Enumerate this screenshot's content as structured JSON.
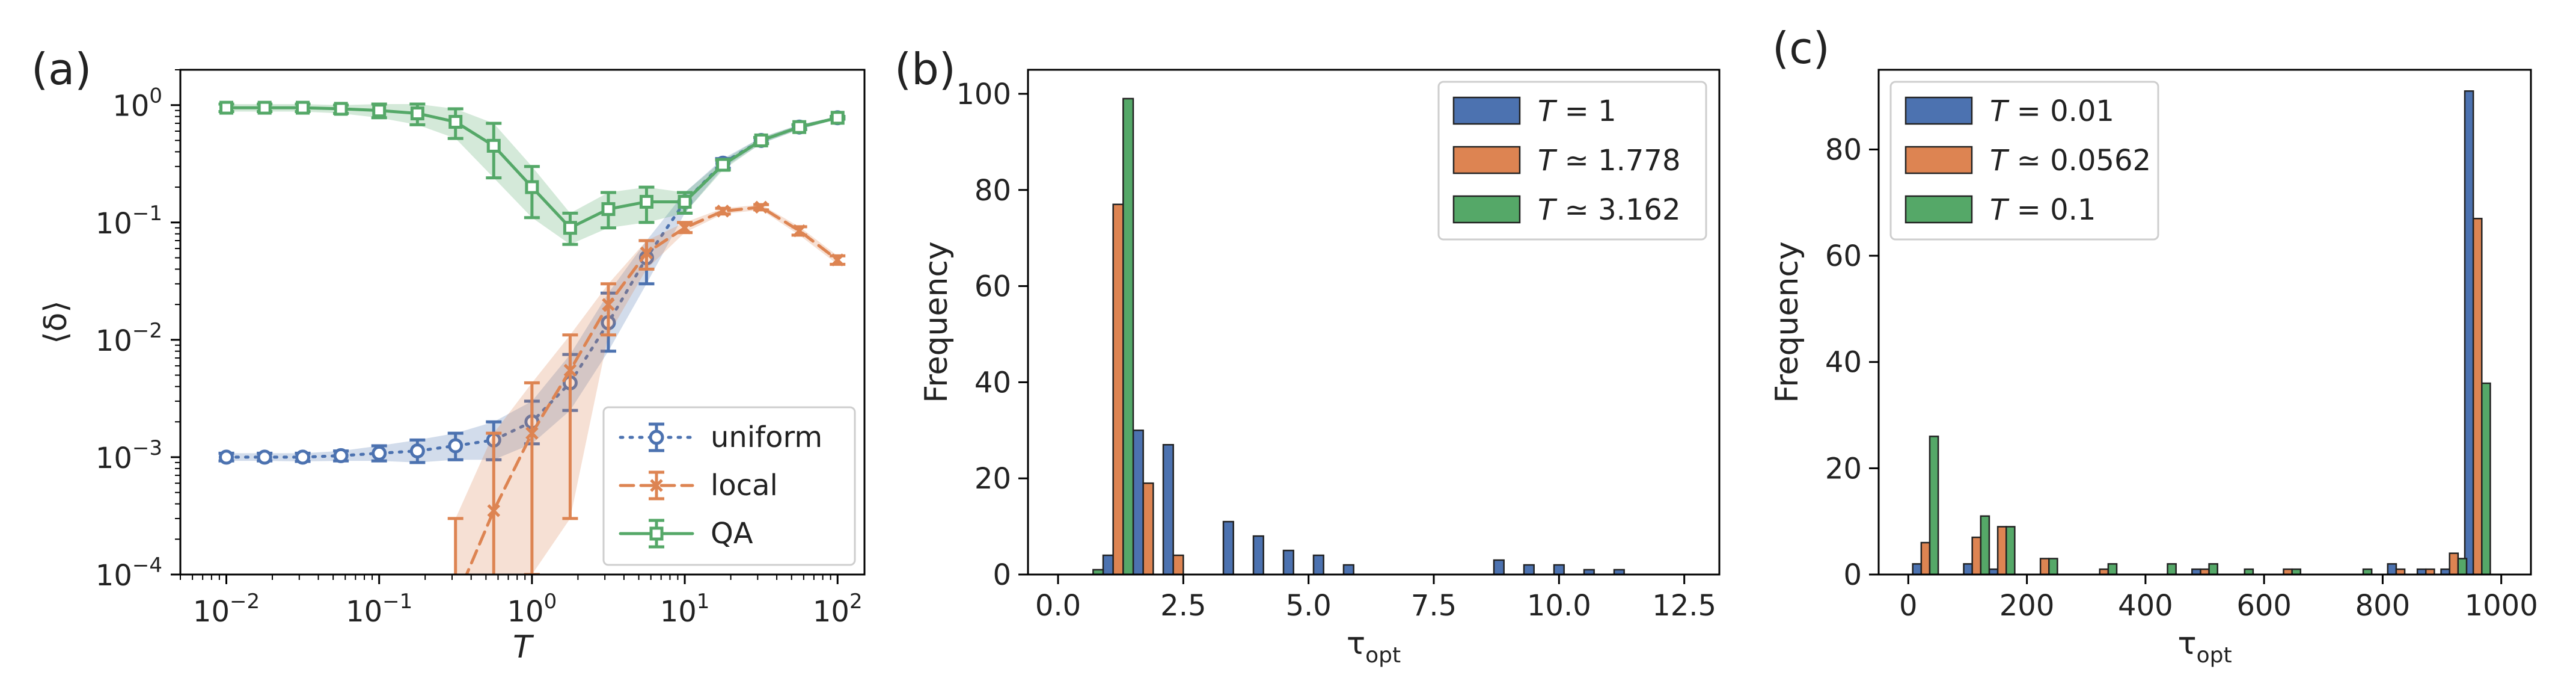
{
  "chart_data": [
    {
      "panel": "(a)",
      "type": "line",
      "xscale": "log",
      "yscale": "log",
      "xlabel": "T",
      "ylabel": "⟨δ⟩",
      "xlim": [
        0.005,
        150
      ],
      "ylim": [
        0.0001,
        2
      ],
      "xticks": [
        {
          "v": 0.01,
          "base": "10",
          "exp": "−2"
        },
        {
          "v": 0.1,
          "base": "10",
          "exp": "−1"
        },
        {
          "v": 1,
          "base": "10",
          "exp": "0"
        },
        {
          "v": 10,
          "base": "10",
          "exp": "1"
        },
        {
          "v": 100,
          "base": "10",
          "exp": "2"
        }
      ],
      "yticks": [
        {
          "v": 0.0001,
          "base": "10",
          "exp": "−4"
        },
        {
          "v": 0.001,
          "base": "10",
          "exp": "−3"
        },
        {
          "v": 0.01,
          "base": "10",
          "exp": "−2"
        },
        {
          "v": 0.1,
          "base": "10",
          "exp": "−1"
        },
        {
          "v": 1,
          "base": "10",
          "exp": "0"
        }
      ],
      "legend_position": "lower-right",
      "series": [
        {
          "name": "uniform",
          "color": "#4c72b0",
          "linestyle": "dotted",
          "marker": "circle",
          "x": [
            0.01,
            0.0178,
            0.0316,
            0.0562,
            0.1,
            0.178,
            0.316,
            0.562,
            1.0,
            1.778,
            3.162,
            5.62,
            10,
            17.78,
            31.62,
            56.2,
            100
          ],
          "y": [
            0.001,
            0.001,
            0.001,
            0.00103,
            0.00108,
            0.00113,
            0.00125,
            0.0014,
            0.002,
            0.0043,
            0.014,
            0.05,
            0.15,
            0.32,
            0.5,
            0.65,
            0.78
          ],
          "lo": [
            0.00093,
            0.00093,
            0.00092,
            0.00093,
            0.00093,
            0.0009,
            0.00095,
            0.00095,
            0.0013,
            0.0025,
            0.008,
            0.03,
            0.12,
            0.29,
            0.47,
            0.62,
            0.76
          ],
          "hi": [
            0.00108,
            0.00108,
            0.00108,
            0.00113,
            0.00125,
            0.0014,
            0.0016,
            0.002,
            0.003,
            0.0075,
            0.025,
            0.07,
            0.18,
            0.35,
            0.53,
            0.68,
            0.8
          ]
        },
        {
          "name": "local",
          "color": "#dd8452",
          "linestyle": "dashed",
          "marker": "x",
          "x": [
            0.316,
            0.562,
            1.0,
            1.778,
            3.162,
            5.62,
            10,
            17.78,
            31.62,
            56.2,
            100
          ],
          "y": [
            6e-05,
            0.00035,
            0.0016,
            0.0055,
            0.02,
            0.055,
            0.09,
            0.125,
            0.135,
            0.085,
            0.048
          ],
          "lo": [
            1e-05,
            5e-05,
            0.0001,
            0.0003,
            0.011,
            0.04,
            0.082,
            0.118,
            0.128,
            0.078,
            0.044
          ],
          "hi": [
            0.0003,
            0.0016,
            0.0043,
            0.011,
            0.03,
            0.07,
            0.1,
            0.132,
            0.142,
            0.092,
            0.052
          ]
        },
        {
          "name": "QA",
          "color": "#55a868",
          "linestyle": "solid",
          "marker": "square",
          "x": [
            0.01,
            0.0178,
            0.0316,
            0.0562,
            0.1,
            0.178,
            0.316,
            0.562,
            1.0,
            1.778,
            3.162,
            5.62,
            10,
            17.78,
            31.62,
            56.2,
            100
          ],
          "y": [
            0.95,
            0.95,
            0.95,
            0.93,
            0.9,
            0.85,
            0.72,
            0.45,
            0.2,
            0.09,
            0.13,
            0.15,
            0.15,
            0.31,
            0.5,
            0.65,
            0.78
          ],
          "lo": [
            0.88,
            0.88,
            0.88,
            0.85,
            0.78,
            0.68,
            0.52,
            0.24,
            0.11,
            0.065,
            0.09,
            0.1,
            0.12,
            0.28,
            0.47,
            0.62,
            0.76
          ],
          "hi": [
            1.02,
            1.02,
            1.02,
            1.0,
            1.02,
            1.02,
            0.93,
            0.7,
            0.3,
            0.12,
            0.18,
            0.2,
            0.18,
            0.34,
            0.53,
            0.68,
            0.8
          ]
        }
      ]
    },
    {
      "panel": "(b)",
      "type": "bar",
      "xlabel": "τ",
      "xlabel_sub": "opt",
      "ylabel": "Frequency",
      "xlim": [
        -0.6,
        13.2
      ],
      "ylim": [
        0,
        105
      ],
      "xticks": [
        "0.0",
        "2.5",
        "5.0",
        "7.5",
        "10.0",
        "12.5"
      ],
      "xtick_values": [
        0,
        2.5,
        5,
        7.5,
        10,
        12.5
      ],
      "yticks": [
        0,
        20,
        40,
        60,
        80,
        100
      ],
      "bin_width": 0.6,
      "legend_position": "top-right",
      "series": [
        {
          "name": "T = 1",
          "label_prefix": "T",
          "label_rel": "=",
          "label_val": "1",
          "color": "#4c72b0",
          "centers": [
            0.6,
            1.2,
            1.8,
            2.4,
            3.0,
            3.6,
            4.2,
            4.8,
            5.4,
            6.0,
            6.6,
            7.2,
            7.8,
            8.4,
            9.0,
            9.6,
            10.2,
            10.8,
            11.4,
            12.0,
            12.6
          ],
          "values": [
            0,
            4,
            30,
            27,
            0,
            11,
            8,
            5,
            4,
            2,
            0,
            0,
            0,
            0,
            3,
            2,
            2,
            1,
            1,
            0,
            0
          ]
        },
        {
          "name": "T ≃ 1.778",
          "label_prefix": "T",
          "label_rel": "≃",
          "label_val": "1.778",
          "color": "#dd8452",
          "centers": [
            0.6,
            1.2,
            1.8,
            2.4,
            3.0
          ],
          "values": [
            0,
            77,
            19,
            4,
            0
          ]
        },
        {
          "name": "T ≃ 3.162",
          "label_prefix": "T",
          "label_rel": "≃",
          "label_val": "3.162",
          "color": "#55a868",
          "centers": [
            0.6,
            1.2,
            1.8
          ],
          "values": [
            1,
            99,
            0
          ]
        }
      ]
    },
    {
      "panel": "(c)",
      "type": "bar",
      "xlabel": "τ",
      "xlabel_sub": "opt",
      "ylabel": "Frequency",
      "xlim": [
        -50,
        1050
      ],
      "ylim": [
        0,
        95
      ],
      "xticks": [
        "0",
        "200",
        "400",
        "600",
        "800",
        "1000"
      ],
      "xtick_values": [
        0,
        200,
        400,
        600,
        800,
        1000
      ],
      "yticks": [
        0,
        20,
        40,
        60,
        80
      ],
      "bin_width": 43,
      "legend_position": "top-left",
      "series": [
        {
          "name": "T = 0.01",
          "label_prefix": "T",
          "label_rel": "=",
          "label_val": "0.01",
          "color": "#4c72b0",
          "centers": [
            29,
            115,
            158,
            230,
            330,
            430,
            500,
            560,
            640,
            760,
            830,
            880,
            920,
            960
          ],
          "values": [
            2,
            2,
            1,
            0,
            0,
            0,
            1,
            0,
            0,
            0,
            2,
            1,
            1,
            91
          ]
        },
        {
          "name": "T ≃ 0.0562",
          "label_prefix": "T",
          "label_rel": "≃",
          "label_val": "0.0562",
          "color": "#dd8452",
          "centers": [
            29,
            115,
            158,
            230,
            330,
            430,
            500,
            560,
            640,
            760,
            830,
            880,
            920,
            960
          ],
          "values": [
            6,
            7,
            9,
            3,
            1,
            0,
            1,
            0,
            1,
            0,
            1,
            1,
            4,
            67
          ]
        },
        {
          "name": "T = 0.1",
          "label_prefix": "T",
          "label_rel": "=",
          "label_val": "0.1",
          "color": "#55a868",
          "centers": [
            29,
            115,
            158,
            230,
            330,
            430,
            500,
            560,
            640,
            760,
            830,
            880,
            920,
            960
          ],
          "values": [
            26,
            11,
            9,
            3,
            2,
            2,
            2,
            1,
            1,
            1,
            0,
            0,
            3,
            36
          ]
        }
      ]
    }
  ]
}
